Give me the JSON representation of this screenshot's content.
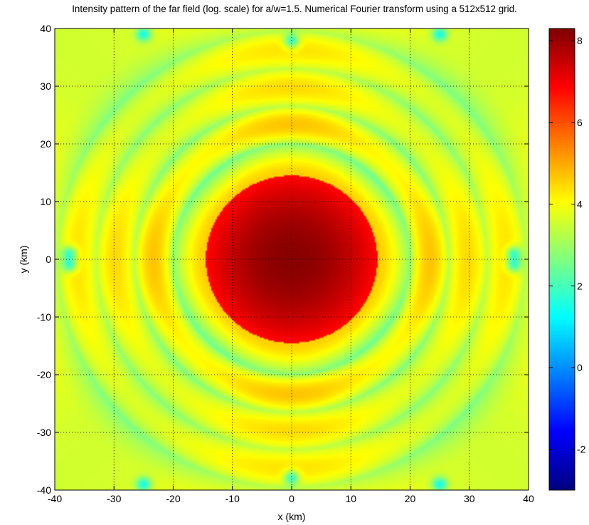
{
  "chart_data": {
    "type": "heatmap",
    "title": "Intensity pattern of the far field (log. scale) for a/w=1.5. Numerical Fourier transform using a 512x512 grid.",
    "xlabel": "x (km)",
    "ylabel": "y (km)",
    "xlim": [
      -40,
      40
    ],
    "ylim": [
      -40,
      40
    ],
    "grid": true,
    "grid_style": "dotted",
    "colormap": "jet",
    "x_ticks": [
      -40,
      -30,
      -20,
      -10,
      0,
      10,
      20,
      30,
      40
    ],
    "y_ticks": [
      40,
      30,
      20,
      10,
      0,
      -10,
      -20,
      -30,
      -40
    ],
    "colorbar": {
      "range": [
        -3,
        8.3
      ],
      "ticks": [
        8,
        6,
        4,
        2,
        0,
        -2
      ]
    },
    "field": {
      "description_values": "radially symmetric log-intensity (Airy-like pattern)",
      "central_disk_radius_km": 14.5,
      "central_peak": 8.2,
      "central_edge": 6.8,
      "ring_radii_km": [
        20,
        26.5,
        33,
        39.5
      ],
      "ring_minimum_values": [
        2.6,
        2.9,
        3.0,
        2.9
      ],
      "ring_maximum_values": [
        4.9,
        4.4,
        4.1
      ],
      "dark_spots": [
        {
          "x": -37.5,
          "y": 1
        },
        {
          "x": -37.5,
          "y": -1
        },
        {
          "x": 37.5,
          "y": 1
        },
        {
          "x": 37.5,
          "y": -1
        },
        {
          "x": 0,
          "y": 37.8
        },
        {
          "x": 0,
          "y": -37.8
        },
        {
          "x": -25,
          "y": 39
        },
        {
          "x": 25,
          "y": 39
        },
        {
          "x": -25,
          "y": -39
        },
        {
          "x": 25,
          "y": -39
        }
      ]
    }
  }
}
